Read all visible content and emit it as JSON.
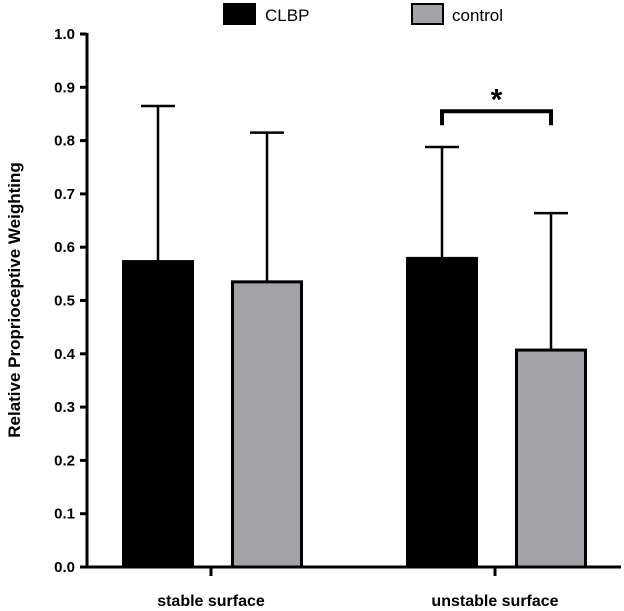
{
  "chart_data": {
    "type": "bar",
    "title": "",
    "xlabel": "",
    "ylabel": "Relative Proprioceptive Weighting",
    "ylim": [
      0,
      1.0
    ],
    "yticks": [
      "0.0",
      "0.1",
      "0.2",
      "0.3",
      "0.4",
      "0.5",
      "0.6",
      "0.7",
      "0.8",
      "0.9",
      "1.0"
    ],
    "categories": [
      "stable surface",
      "unstable surface"
    ],
    "series": [
      {
        "name": "CLBP",
        "color": "#000000",
        "values": [
          0.573,
          0.579
        ],
        "error_upper": [
          0.865,
          0.788
        ]
      },
      {
        "name": "control",
        "color": "#a3a3a7",
        "values": [
          0.535,
          0.407
        ],
        "error_upper": [
          0.815,
          0.664
        ]
      }
    ],
    "significance": {
      "category": "unstable surface",
      "label": "*",
      "bracket_level": 0.855
    },
    "legend": {
      "position": "top"
    }
  }
}
